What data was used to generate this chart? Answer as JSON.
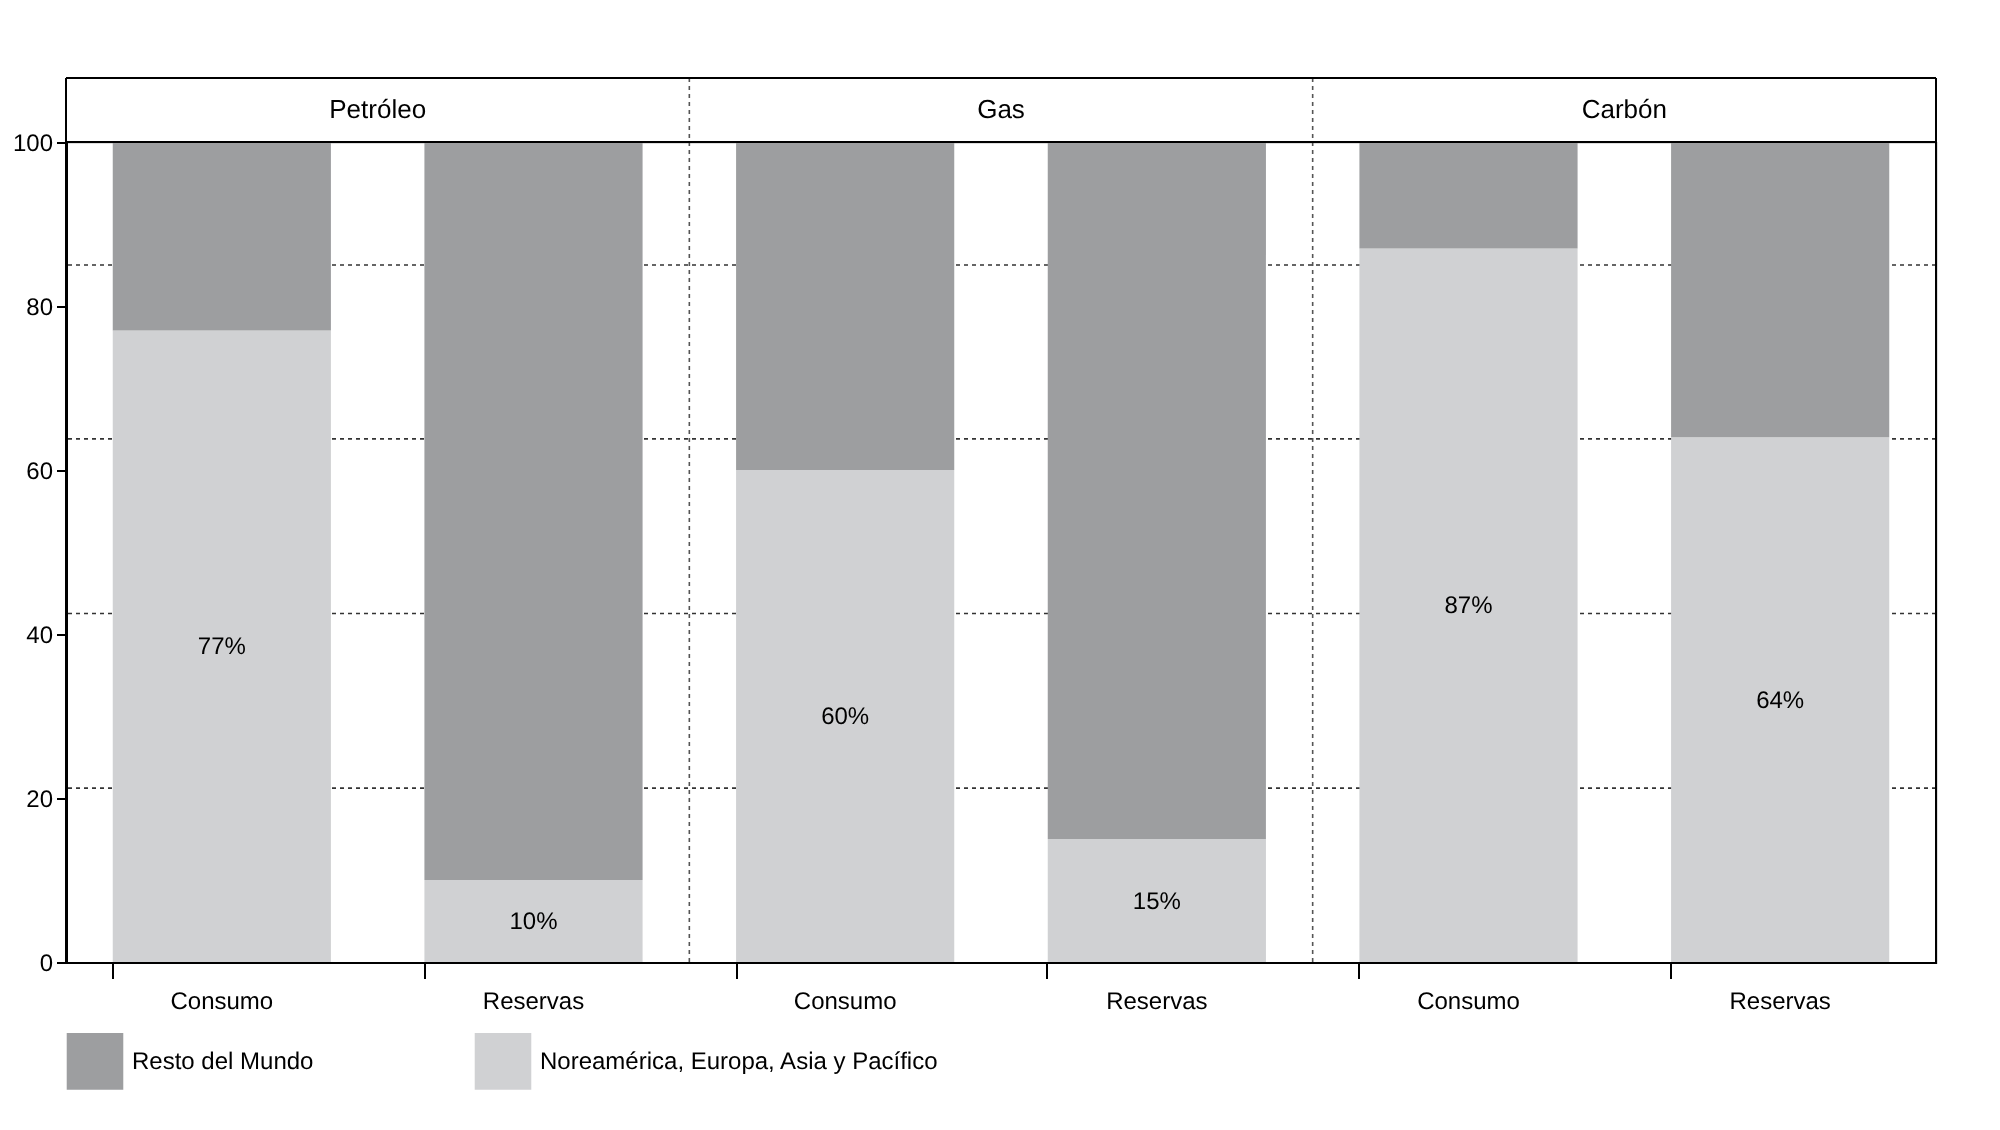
{
  "chart_data": {
    "type": "bar",
    "categories": [
      "Consumo",
      "Reservas",
      "Consumo",
      "Reservas",
      "Consumo",
      "Reservas"
    ],
    "stacked": true,
    "ylim": [
      0,
      100
    ],
    "yticks": [
      0,
      20,
      40,
      60,
      80,
      100
    ],
    "legend": "bottom",
    "annotations": [
      "Petróleo",
      "Gas",
      "Carbón"
    ],
    "series": [
      {
        "name": "Noreamérica, Europa, Asia y Pacífico",
        "color": "#d0d1d3",
        "values": [
          77,
          10,
          60,
          15,
          87,
          64
        ],
        "value_labels": [
          "77%",
          "10%",
          "60%",
          "15%",
          "87%",
          "64%"
        ]
      },
      {
        "name": "Resto del Mundo",
        "color": "#9d9ea0",
        "values": [
          23,
          90,
          40,
          85,
          13,
          36
        ]
      }
    ],
    "ref_lines": [
      {
        "axis": "y",
        "value": 21.2,
        "line_style": "dotted"
      },
      {
        "axis": "y",
        "value": 42.5,
        "line_style": "dotted"
      },
      {
        "axis": "y",
        "value": 63.8,
        "line_style": "dotted"
      },
      {
        "axis": "y",
        "value": 85,
        "line_style": "dotted"
      }
    ]
  }
}
